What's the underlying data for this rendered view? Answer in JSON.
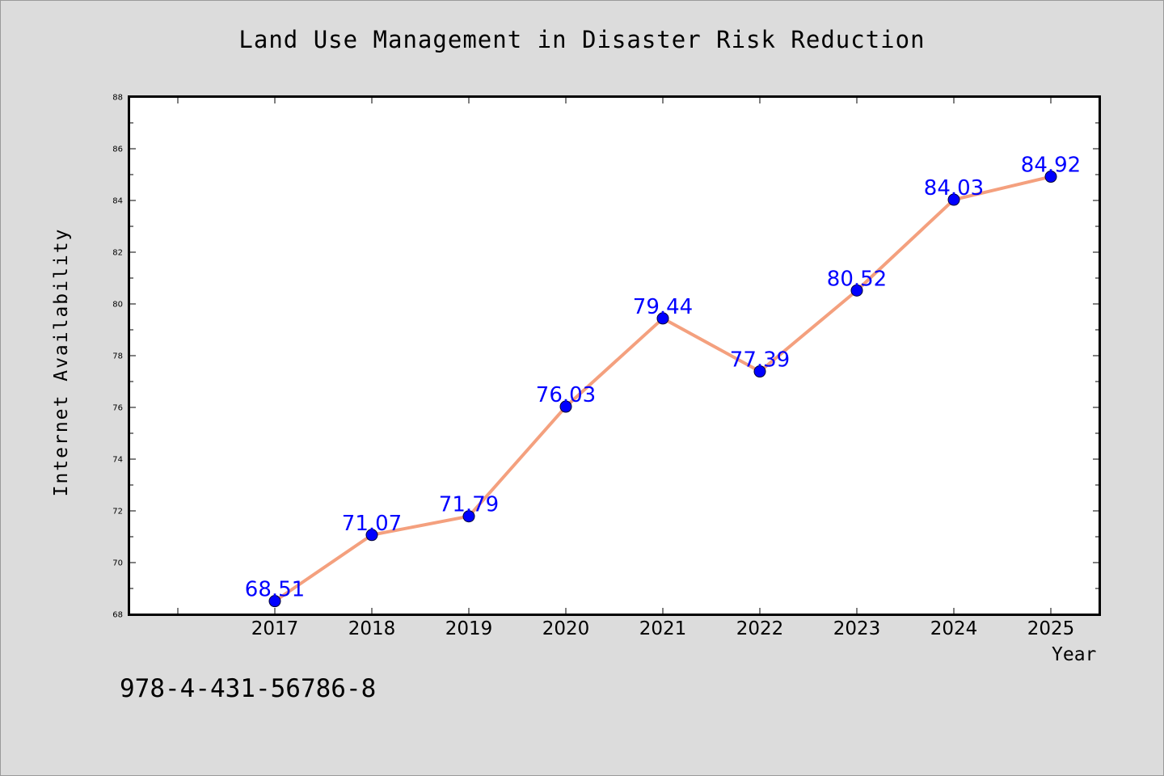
{
  "colors": {
    "background": "#dcdcdc",
    "plot_background": "#ffffff",
    "line": "#f4a07e",
    "marker": "#0000ff",
    "data_label": "#0000ff"
  },
  "footer": {
    "isbn": "978-4-431-56786-8"
  },
  "chart_data": {
    "type": "line",
    "title": "Land Use Management in Disaster Risk Reduction",
    "xlabel": "Year",
    "ylabel": "Internet Availability",
    "categories": [
      "2017",
      "2018",
      "2019",
      "2020",
      "2021",
      "2022",
      "2023",
      "2024",
      "2025"
    ],
    "values": [
      68.51,
      71.07,
      71.79,
      76.03,
      79.44,
      77.39,
      80.52,
      84.03,
      84.92
    ],
    "data_labels": [
      "68.51",
      "71.07",
      "71.79",
      "76.03",
      "79.44",
      "77.39",
      "80.52",
      "84.03",
      "84.92"
    ],
    "yticks": [
      "68",
      "70",
      "72",
      "74",
      "76",
      "78",
      "80",
      "82",
      "84",
      "86",
      "88"
    ],
    "ylim": [
      68,
      88
    ],
    "xlim": [
      2015.5,
      2025.5
    ],
    "grid": false,
    "markers": "circle"
  }
}
